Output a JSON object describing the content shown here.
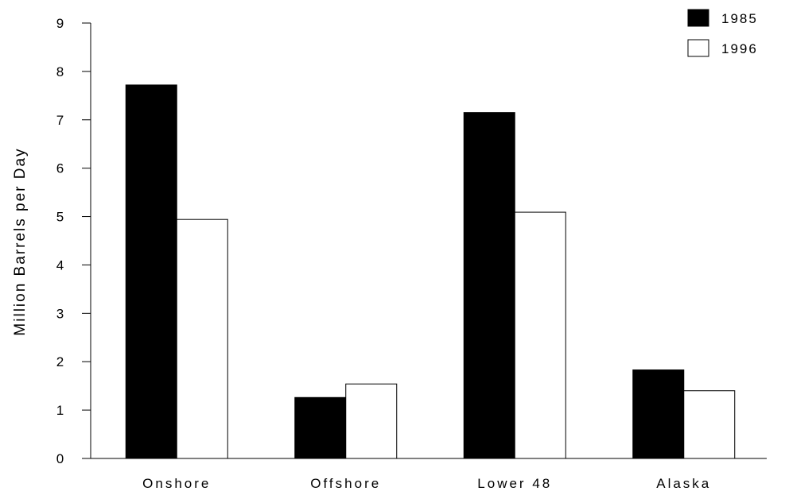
{
  "chart_data": {
    "type": "bar",
    "title": "",
    "xlabel": "",
    "ylabel": "Million Barrels per Day",
    "ylim": [
      0,
      9
    ],
    "yticks": [
      0,
      1,
      2,
      3,
      4,
      5,
      6,
      7,
      8,
      9
    ],
    "categories": [
      "Onshore",
      "Offshore",
      "Lower 48",
      "Alaska"
    ],
    "series": [
      {
        "name": "1985",
        "color": "#000000",
        "values": [
          7.72,
          1.26,
          7.15,
          1.83
        ]
      },
      {
        "name": "1996",
        "color": "#ffffff",
        "values": [
          4.94,
          1.54,
          5.09,
          1.4
        ]
      }
    ],
    "legend_position": "top-right",
    "grid": false
  }
}
